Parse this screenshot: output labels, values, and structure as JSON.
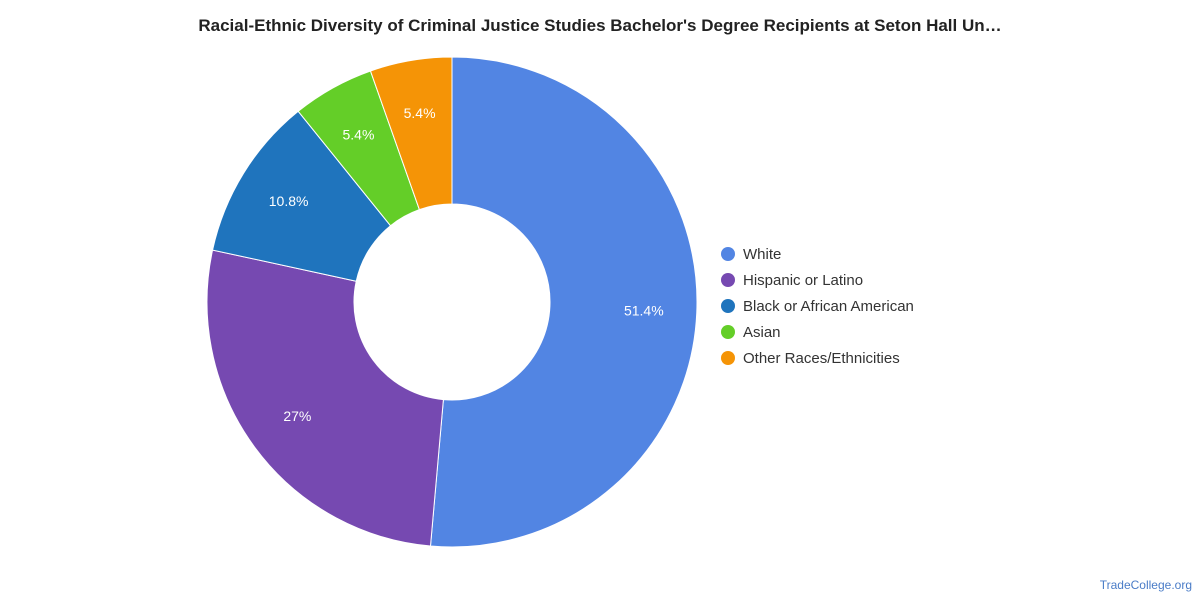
{
  "chart_data": {
    "type": "pie",
    "title": "Racial-Ethnic Diversity of Criminal Justice Studies Bachelor's Degree Recipients at Seton Hall Un…",
    "donut": true,
    "legend_position": "right",
    "series": [
      {
        "name": "White",
        "value": 51.4,
        "label": "51.4%",
        "color": "#5285e3"
      },
      {
        "name": "Hispanic or Latino",
        "value": 27,
        "label": "27%",
        "color": "#7649b1"
      },
      {
        "name": "Black or African American",
        "value": 10.8,
        "label": "10.8%",
        "color": "#1f74bd"
      },
      {
        "name": "Asian",
        "value": 5.4,
        "label": "5.4%",
        "color": "#64ce28"
      },
      {
        "name": "Other Races/Ethnicities",
        "value": 5.4,
        "label": "5.4%",
        "color": "#f59406"
      }
    ]
  },
  "footer": {
    "source": "TradeCollege.org"
  }
}
